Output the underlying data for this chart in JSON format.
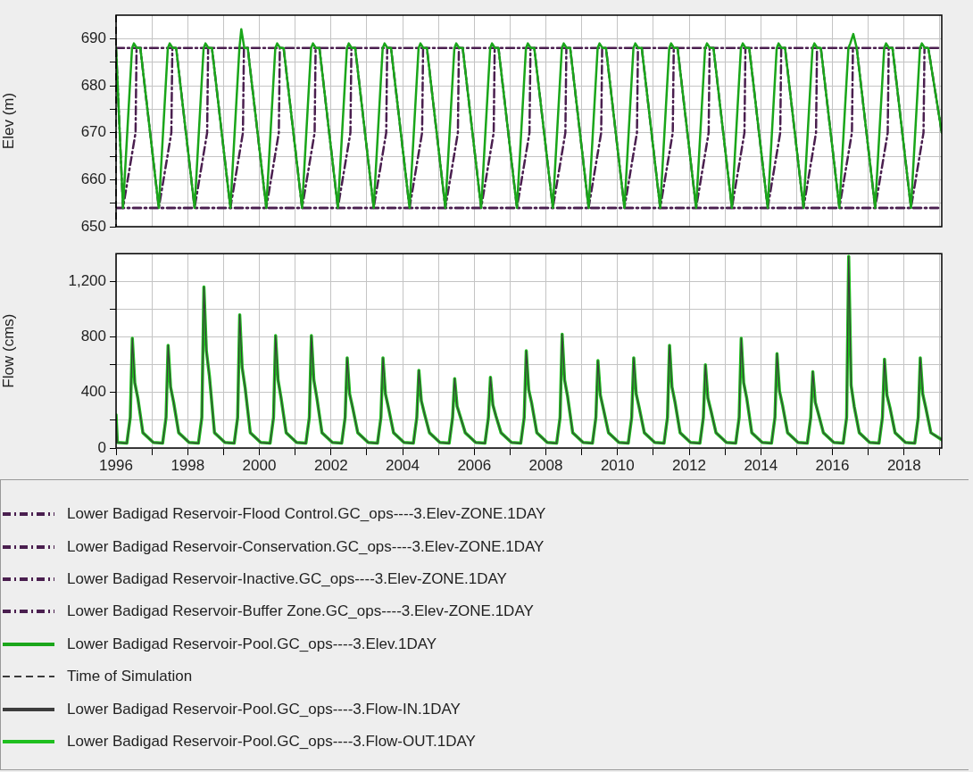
{
  "chart_data": [
    {
      "type": "line",
      "ylabel": "Elev (m)",
      "xlim": [
        "1996-01-01",
        "2019-01-20"
      ],
      "ylim": [
        650,
        695
      ],
      "xticks": [
        {
          "value": "1996-01-01",
          "label": null
        },
        {
          "value": "1997-01-01",
          "label": null
        },
        {
          "value": "1998-01-01",
          "label": null
        },
        {
          "value": "1999-01-01",
          "label": null
        },
        {
          "value": "2000-01-01",
          "label": null
        },
        {
          "value": "2001-01-01",
          "label": null
        },
        {
          "value": "2002-01-01",
          "label": null
        },
        {
          "value": "2003-01-01",
          "label": null
        },
        {
          "value": "2004-01-01",
          "label": null
        },
        {
          "value": "2005-01-01",
          "label": null
        },
        {
          "value": "2006-01-01",
          "label": null
        },
        {
          "value": "2007-01-01",
          "label": null
        },
        {
          "value": "2008-01-01",
          "label": null
        },
        {
          "value": "2009-01-01",
          "label": null
        },
        {
          "value": "2010-01-01",
          "label": null
        },
        {
          "value": "2011-01-01",
          "label": null
        },
        {
          "value": "2012-01-01",
          "label": null
        },
        {
          "value": "2013-01-01",
          "label": null
        },
        {
          "value": "2014-01-01",
          "label": null
        },
        {
          "value": "2015-01-01",
          "label": null
        },
        {
          "value": "2016-01-01",
          "label": null
        },
        {
          "value": "2017-01-01",
          "label": null
        },
        {
          "value": "2018-01-01",
          "label": null
        },
        {
          "value": "2019-01-01",
          "label": null
        }
      ],
      "yticks": [
        650,
        {
          "value": 655,
          "label": null
        },
        660,
        {
          "value": 665,
          "label": null
        },
        670,
        {
          "value": 675,
          "label": null
        },
        680,
        {
          "value": 685,
          "label": null
        },
        690
      ],
      "grid": true,
      "legend": "bottom",
      "tick_labels": "y",
      "marker": "none",
      "series": [
        {
          "name": "Lower Badigad Reservoir-Flood Control.GC_ops----3.Elev-ZONE.1DAY",
          "color": "#4a1f4f",
          "line_style": "dashdot",
          "x": [
            "1996-01-01",
            "2019-01-20"
          ],
          "values": [
            688,
            688
          ]
        },
        {
          "name": "Lower Badigad Reservoir-Conservation.GC_ops----3.Elev-ZONE.1DAY",
          "color": "#4a1f4f",
          "line_style": "dashdot",
          "x": [
            "1996-01-01",
            "1996-03-12",
            "1996-07-18",
            "1996-07-28",
            "1996-09-05",
            "1997-03-12",
            "1997-07-18",
            "1997-07-28",
            "1997-09-05",
            "1998-03-12",
            "1998-07-18",
            "1998-07-28",
            "1998-09-05",
            "1999-03-12",
            "1999-07-18",
            "1999-07-28",
            "1999-09-05",
            "2000-03-12",
            "2000-07-18",
            "2000-07-28",
            "2000-09-05",
            "2001-03-12",
            "2001-07-18",
            "2001-07-28",
            "2001-09-05",
            "2002-03-12",
            "2002-07-18",
            "2002-07-28",
            "2002-09-05",
            "2003-03-12",
            "2003-07-18",
            "2003-07-28",
            "2003-09-05",
            "2004-03-12",
            "2004-07-18",
            "2004-07-28",
            "2004-09-05",
            "2005-03-12",
            "2005-07-18",
            "2005-07-28",
            "2005-09-05",
            "2006-03-12",
            "2006-07-18",
            "2006-07-28",
            "2006-09-05",
            "2007-03-12",
            "2007-07-18",
            "2007-07-28",
            "2007-09-05",
            "2008-03-12",
            "2008-07-18",
            "2008-07-28",
            "2008-09-05",
            "2009-03-12",
            "2009-07-18",
            "2009-07-28",
            "2009-09-05",
            "2010-03-12",
            "2010-07-18",
            "2010-07-28",
            "2010-09-05",
            "2011-03-12",
            "2011-07-18",
            "2011-07-28",
            "2011-09-05",
            "2012-03-12",
            "2012-07-18",
            "2012-07-28",
            "2012-09-05",
            "2013-03-12",
            "2013-07-18",
            "2013-07-28",
            "2013-09-05",
            "2014-03-12",
            "2014-07-18",
            "2014-07-28",
            "2014-09-05",
            "2015-03-12",
            "2015-07-18",
            "2015-07-28",
            "2015-09-05",
            "2016-03-12",
            "2016-07-18",
            "2016-07-28",
            "2016-09-05",
            "2017-03-12",
            "2017-07-18",
            "2017-07-28",
            "2017-09-05",
            "2018-03-12",
            "2018-07-18",
            "2018-07-28",
            "2018-09-05",
            "2019-01-20"
          ],
          "values": [
            688,
            654,
            670,
            688,
            688,
            654,
            670,
            688,
            688,
            654,
            670,
            688,
            688,
            654,
            670,
            688,
            688,
            654,
            670,
            688,
            688,
            654,
            670,
            688,
            688,
            654,
            670,
            688,
            688,
            654,
            670,
            688,
            688,
            654,
            670,
            688,
            688,
            654,
            670,
            688,
            688,
            654,
            670,
            688,
            688,
            654,
            670,
            688,
            688,
            654,
            670,
            688,
            688,
            654,
            670,
            688,
            688,
            654,
            670,
            688,
            688,
            654,
            670,
            688,
            688,
            654,
            670,
            688,
            688,
            654,
            670,
            688,
            688,
            654,
            670,
            688,
            688,
            654,
            670,
            688,
            688,
            654,
            670,
            688,
            688,
            654,
            670,
            688,
            688,
            654,
            670,
            688,
            688,
            670
          ]
        },
        {
          "name": "Lower Badigad Reservoir-Inactive.GC_ops----3.Elev-ZONE.1DAY",
          "color": "#4a1f4f",
          "line_style": "dashdot",
          "x": [
            "1996-01-01",
            "2019-01-20"
          ],
          "values": [
            654,
            654
          ]
        },
        {
          "name": "Lower Badigad Reservoir-Buffer Zone.GC_ops----3.Elev-ZONE.1DAY",
          "color": "#4a1f4f",
          "line_style": "dashdot",
          "x": [
            "1996-01-01",
            "2019-01-20"
          ],
          "values": [
            654,
            654
          ]
        },
        {
          "name": "Lower Badigad Reservoir-Pool.GC_ops----3.Elev.1DAY",
          "color": "#1aa61a",
          "line_style": "solid",
          "x": [
            "1996-01-01",
            "1996-03-12",
            "1996-06-12",
            "1996-07-01",
            "1996-08-01",
            "1996-09-05",
            "1997-03-12",
            "1997-06-12",
            "1997-07-01",
            "1997-08-01",
            "1997-09-05",
            "1998-03-12",
            "1998-06-12",
            "1998-07-01",
            "1998-08-01",
            "1998-09-05",
            "1999-03-12",
            "1999-06-12",
            "1999-07-01",
            "1999-08-01",
            "1999-09-05",
            "2000-03-12",
            "2000-06-12",
            "2000-07-01",
            "2000-08-01",
            "2000-09-05",
            "2001-03-12",
            "2001-06-12",
            "2001-07-01",
            "2001-08-01",
            "2001-09-05",
            "2002-03-12",
            "2002-06-12",
            "2002-07-01",
            "2002-08-01",
            "2002-09-05",
            "2003-03-12",
            "2003-06-12",
            "2003-07-01",
            "2003-08-01",
            "2003-09-05",
            "2004-03-12",
            "2004-06-12",
            "2004-07-01",
            "2004-08-01",
            "2004-09-05",
            "2005-03-12",
            "2005-06-12",
            "2005-07-01",
            "2005-08-01",
            "2005-09-05",
            "2006-03-12",
            "2006-06-12",
            "2006-07-01",
            "2006-08-01",
            "2006-09-05",
            "2007-03-12",
            "2007-06-12",
            "2007-07-01",
            "2007-08-01",
            "2007-09-05",
            "2008-03-12",
            "2008-06-12",
            "2008-07-01",
            "2008-08-01",
            "2008-09-05",
            "2009-03-12",
            "2009-06-12",
            "2009-07-01",
            "2009-08-01",
            "2009-09-05",
            "2010-03-12",
            "2010-06-12",
            "2010-07-01",
            "2010-08-01",
            "2010-09-05",
            "2011-03-12",
            "2011-06-12",
            "2011-07-01",
            "2011-08-01",
            "2011-09-05",
            "2012-03-12",
            "2012-06-12",
            "2012-07-01",
            "2012-08-01",
            "2012-09-05",
            "2013-03-12",
            "2013-06-12",
            "2013-07-01",
            "2013-08-01",
            "2013-09-05",
            "2014-03-12",
            "2014-06-12",
            "2014-07-01",
            "2014-08-01",
            "2014-09-05",
            "2015-03-12",
            "2015-06-12",
            "2015-07-01",
            "2015-08-01",
            "2015-09-05",
            "2016-03-12",
            "2016-06-12",
            "2016-07-01",
            "2016-08-01",
            "2016-09-05",
            "2017-03-12",
            "2017-06-12",
            "2017-07-01",
            "2017-08-01",
            "2017-09-05",
            "2018-03-12",
            "2018-06-12",
            "2018-07-01",
            "2018-08-01",
            "2018-09-05",
            "2019-01-20"
          ],
          "values": [
            688,
            654,
            688,
            689,
            688,
            688,
            654,
            688,
            689,
            688,
            688,
            654,
            688,
            689,
            688,
            688,
            654,
            688,
            692,
            688,
            688,
            654,
            688,
            689,
            688,
            688,
            654,
            688,
            689,
            688,
            688,
            654,
            688,
            689,
            688,
            688,
            654,
            688,
            689,
            688,
            688,
            654,
            688,
            689,
            688,
            688,
            654,
            688,
            689,
            688,
            688,
            654,
            688,
            689,
            688,
            688,
            654,
            688,
            689,
            688,
            688,
            654,
            688,
            689,
            688,
            688,
            654,
            688,
            689,
            688,
            688,
            654,
            688,
            689,
            688,
            688,
            654,
            688,
            689,
            688,
            688,
            654,
            688,
            689,
            688,
            688,
            654,
            688,
            689,
            688,
            688,
            654,
            688,
            689,
            688,
            688,
            654,
            688,
            689,
            688,
            688,
            654,
            688,
            689,
            691,
            688,
            654,
            688,
            689,
            688,
            688,
            654,
            688,
            689,
            688,
            688,
            670
          ]
        }
      ],
      "ref_lines": [
        {
          "axis": "x",
          "value": "1996-01-01",
          "label": "Time of Simulation",
          "color": "#000000",
          "line_style": "dashed"
        }
      ]
    },
    {
      "type": "line",
      "ylabel": "Flow (cms)",
      "xlim": [
        "1996-01-01",
        "2019-01-20"
      ],
      "ylim": [
        0,
        1400
      ],
      "xticks": [
        {
          "value": "1996-01-01",
          "label": "1996"
        },
        {
          "value": "1997-01-01",
          "label": null
        },
        {
          "value": "1998-01-01",
          "label": "1998"
        },
        {
          "value": "1999-01-01",
          "label": null
        },
        {
          "value": "2000-01-01",
          "label": "2000"
        },
        {
          "value": "2001-01-01",
          "label": null
        },
        {
          "value": "2002-01-01",
          "label": "2002"
        },
        {
          "value": "2003-01-01",
          "label": null
        },
        {
          "value": "2004-01-01",
          "label": "2004"
        },
        {
          "value": "2005-01-01",
          "label": null
        },
        {
          "value": "2006-01-01",
          "label": "2006"
        },
        {
          "value": "2007-01-01",
          "label": null
        },
        {
          "value": "2008-01-01",
          "label": "2008"
        },
        {
          "value": "2009-01-01",
          "label": null
        },
        {
          "value": "2010-01-01",
          "label": "2010"
        },
        {
          "value": "2011-01-01",
          "label": null
        },
        {
          "value": "2012-01-01",
          "label": "2012"
        },
        {
          "value": "2013-01-01",
          "label": null
        },
        {
          "value": "2014-01-01",
          "label": "2014"
        },
        {
          "value": "2015-01-01",
          "label": null
        },
        {
          "value": "2016-01-01",
          "label": "2016"
        },
        {
          "value": "2017-01-01",
          "label": null
        },
        {
          "value": "2018-01-01",
          "label": "2018"
        },
        {
          "value": "2019-01-01",
          "label": null
        }
      ],
      "yticks": [
        {
          "value": 0,
          "label": "0"
        },
        {
          "value": 200,
          "label": null
        },
        {
          "value": 400,
          "label": "400"
        },
        {
          "value": 600,
          "label": null
        },
        {
          "value": 800,
          "label": "800"
        },
        {
          "value": 1000,
          "label": null
        },
        {
          "value": 1200,
          "label": "1,200"
        }
      ],
      "grid": true,
      "legend": "bottom",
      "marker": "none",
      "series": [
        {
          "name": "Lower Badigad Reservoir-Pool.GC_ops----3.Flow-IN.1DAY",
          "color": "#3c3c3c",
          "line_style": "solid",
          "x": [
            "1996-01-01",
            "1996-01-15",
            "1996-04-20",
            "1996-05-25",
            "1996-06-15",
            "1996-07-10",
            "1996-08-10",
            "1996-10-01",
            "1997-01-15",
            "1997-04-20",
            "1997-05-25",
            "1997-06-15",
            "1997-07-10",
            "1997-08-10",
            "1997-10-01",
            "1998-01-15",
            "1998-04-20",
            "1998-05-25",
            "1998-06-15",
            "1998-07-10",
            "1998-08-10",
            "1998-10-01",
            "1999-01-15",
            "1999-04-20",
            "1999-05-25",
            "1999-06-15",
            "1999-07-10",
            "1999-08-10",
            "1999-10-01",
            "2000-01-15",
            "2000-04-20",
            "2000-05-25",
            "2000-06-15",
            "2000-07-10",
            "2000-08-10",
            "2000-10-01",
            "2001-01-15",
            "2001-04-20",
            "2001-05-25",
            "2001-06-15",
            "2001-07-10",
            "2001-08-10",
            "2001-10-01",
            "2002-01-15",
            "2002-04-20",
            "2002-05-25",
            "2002-06-15",
            "2002-07-10",
            "2002-08-10",
            "2002-10-01",
            "2003-01-15",
            "2003-04-20",
            "2003-05-25",
            "2003-06-15",
            "2003-07-10",
            "2003-08-10",
            "2003-10-01",
            "2004-01-15",
            "2004-04-20",
            "2004-05-25",
            "2004-06-15",
            "2004-07-10",
            "2004-08-10",
            "2004-10-01",
            "2005-01-15",
            "2005-04-20",
            "2005-05-25",
            "2005-06-15",
            "2005-07-10",
            "2005-08-10",
            "2005-10-01",
            "2006-01-15",
            "2006-04-20",
            "2006-05-25",
            "2006-06-15",
            "2006-07-10",
            "2006-08-10",
            "2006-10-01",
            "2007-01-15",
            "2007-04-20",
            "2007-05-25",
            "2007-06-15",
            "2007-07-10",
            "2007-08-10",
            "2007-10-01",
            "2008-01-15",
            "2008-04-20",
            "2008-05-25",
            "2008-06-15",
            "2008-07-10",
            "2008-08-10",
            "2008-10-01",
            "2009-01-15",
            "2009-04-20",
            "2009-05-25",
            "2009-06-15",
            "2009-07-10",
            "2009-08-10",
            "2009-10-01",
            "2010-01-15",
            "2010-04-20",
            "2010-05-25",
            "2010-06-15",
            "2010-07-10",
            "2010-08-10",
            "2010-10-01",
            "2011-01-15",
            "2011-04-20",
            "2011-05-25",
            "2011-06-15",
            "2011-07-10",
            "2011-08-10",
            "2011-10-01",
            "2012-01-15",
            "2012-04-20",
            "2012-05-25",
            "2012-06-15",
            "2012-07-10",
            "2012-08-10",
            "2012-10-01",
            "2013-01-15",
            "2013-04-20",
            "2013-05-25",
            "2013-06-15",
            "2013-07-10",
            "2013-08-10",
            "2013-10-01",
            "2014-01-15",
            "2014-04-20",
            "2014-05-25",
            "2014-06-15",
            "2014-07-10",
            "2014-08-10",
            "2014-10-01",
            "2015-01-15",
            "2015-04-20",
            "2015-05-25",
            "2015-06-15",
            "2015-07-10",
            "2015-08-10",
            "2015-10-01",
            "2016-01-15",
            "2016-04-20",
            "2016-05-25",
            "2016-06-15",
            "2016-07-10",
            "2016-08-10",
            "2016-10-01",
            "2017-01-15",
            "2017-04-20",
            "2017-05-25",
            "2017-06-15",
            "2017-07-10",
            "2017-08-10",
            "2017-10-01",
            "2018-01-15",
            "2018-04-20",
            "2018-05-25",
            "2018-06-15",
            "2018-07-10",
            "2018-08-10",
            "2018-10-01",
            "2019-01-20"
          ],
          "values": [
            240,
            40,
            35,
            220,
            790,
            470,
            360,
            110,
            40,
            35,
            220,
            740,
            440,
            330,
            110,
            40,
            35,
            220,
            1160,
            700,
            520,
            110,
            40,
            35,
            220,
            960,
            580,
            430,
            110,
            40,
            35,
            220,
            810,
            490,
            360,
            110,
            40,
            35,
            220,
            810,
            490,
            360,
            110,
            40,
            35,
            220,
            650,
            390,
            290,
            110,
            40,
            35,
            220,
            650,
            390,
            290,
            110,
            40,
            35,
            220,
            560,
            340,
            250,
            110,
            40,
            35,
            220,
            500,
            300,
            230,
            110,
            40,
            35,
            220,
            510,
            310,
            230,
            110,
            40,
            35,
            220,
            700,
            420,
            320,
            110,
            40,
            35,
            220,
            820,
            490,
            370,
            110,
            40,
            35,
            220,
            630,
            380,
            280,
            110,
            40,
            35,
            220,
            650,
            390,
            290,
            110,
            40,
            35,
            220,
            740,
            440,
            330,
            110,
            40,
            35,
            220,
            600,
            360,
            270,
            110,
            40,
            35,
            220,
            790,
            470,
            360,
            110,
            40,
            35,
            220,
            680,
            410,
            310,
            110,
            40,
            35,
            220,
            550,
            330,
            250,
            110,
            40,
            35,
            220,
            1380,
            450,
            300,
            110,
            40,
            35,
            220,
            640,
            380,
            290,
            110,
            40,
            35,
            220,
            650,
            390,
            290,
            110,
            60
          ]
        },
        {
          "name": "Lower Badigad Reservoir-Pool.GC_ops----3.Flow-OUT.1DAY",
          "color": "#1fbf1f",
          "line_style": "solid",
          "x": [
            "1996-01-01",
            "1996-01-15",
            "1996-04-20",
            "1996-05-25",
            "1996-06-15",
            "1996-07-10",
            "1996-08-10",
            "1996-10-01",
            "1997-01-15",
            "1997-04-20",
            "1997-05-25",
            "1997-06-15",
            "1997-07-10",
            "1997-08-10",
            "1997-10-01",
            "1998-01-15",
            "1998-04-20",
            "1998-05-25",
            "1998-06-15",
            "1998-07-10",
            "1998-08-10",
            "1998-10-01",
            "1999-01-15",
            "1999-04-20",
            "1999-05-25",
            "1999-06-15",
            "1999-07-10",
            "1999-08-10",
            "1999-10-01",
            "2000-01-15",
            "2000-04-20",
            "2000-05-25",
            "2000-06-15",
            "2000-07-10",
            "2000-08-10",
            "2000-10-01",
            "2001-01-15",
            "2001-04-20",
            "2001-05-25",
            "2001-06-15",
            "2001-07-10",
            "2001-08-10",
            "2001-10-01",
            "2002-01-15",
            "2002-04-20",
            "2002-05-25",
            "2002-06-15",
            "2002-07-10",
            "2002-08-10",
            "2002-10-01",
            "2003-01-15",
            "2003-04-20",
            "2003-05-25",
            "2003-06-15",
            "2003-07-10",
            "2003-08-10",
            "2003-10-01",
            "2004-01-15",
            "2004-04-20",
            "2004-05-25",
            "2004-06-15",
            "2004-07-10",
            "2004-08-10",
            "2004-10-01",
            "2005-01-15",
            "2005-04-20",
            "2005-05-25",
            "2005-06-15",
            "2005-07-10",
            "2005-08-10",
            "2005-10-01",
            "2006-01-15",
            "2006-04-20",
            "2006-05-25",
            "2006-06-15",
            "2006-07-10",
            "2006-08-10",
            "2006-10-01",
            "2007-01-15",
            "2007-04-20",
            "2007-05-25",
            "2007-06-15",
            "2007-07-10",
            "2007-08-10",
            "2007-10-01",
            "2008-01-15",
            "2008-04-20",
            "2008-05-25",
            "2008-06-15",
            "2008-07-10",
            "2008-08-10",
            "2008-10-01",
            "2009-01-15",
            "2009-04-20",
            "2009-05-25",
            "2009-06-15",
            "2009-07-10",
            "2009-08-10",
            "2009-10-01",
            "2010-01-15",
            "2010-04-20",
            "2010-05-25",
            "2010-06-15",
            "2010-07-10",
            "2010-08-10",
            "2010-10-01",
            "2011-01-15",
            "2011-04-20",
            "2011-05-25",
            "2011-06-15",
            "2011-07-10",
            "2011-08-10",
            "2011-10-01",
            "2012-01-15",
            "2012-04-20",
            "2012-05-25",
            "2012-06-15",
            "2012-07-10",
            "2012-08-10",
            "2012-10-01",
            "2013-01-15",
            "2013-04-20",
            "2013-05-25",
            "2013-06-15",
            "2013-07-10",
            "2013-08-10",
            "2013-10-01",
            "2014-01-15",
            "2014-04-20",
            "2014-05-25",
            "2014-06-15",
            "2014-07-10",
            "2014-08-10",
            "2014-10-01",
            "2015-01-15",
            "2015-04-20",
            "2015-05-25",
            "2015-06-15",
            "2015-07-10",
            "2015-08-10",
            "2015-10-01",
            "2016-01-15",
            "2016-04-20",
            "2016-05-25",
            "2016-06-15",
            "2016-07-10",
            "2016-08-10",
            "2016-10-01",
            "2017-01-15",
            "2017-04-20",
            "2017-05-25",
            "2017-06-15",
            "2017-07-10",
            "2017-08-10",
            "2017-10-01",
            "2018-01-15",
            "2018-04-20",
            "2018-05-25",
            "2018-06-15",
            "2018-07-10",
            "2018-08-10",
            "2018-10-01",
            "2019-01-20"
          ],
          "values": [
            240,
            40,
            35,
            220,
            790,
            470,
            360,
            110,
            40,
            35,
            220,
            740,
            440,
            330,
            110,
            40,
            35,
            220,
            1160,
            700,
            520,
            110,
            40,
            35,
            220,
            960,
            580,
            430,
            110,
            40,
            35,
            220,
            810,
            490,
            360,
            110,
            40,
            35,
            220,
            810,
            490,
            360,
            110,
            40,
            35,
            220,
            650,
            390,
            290,
            110,
            40,
            35,
            220,
            650,
            390,
            290,
            110,
            40,
            35,
            220,
            560,
            340,
            250,
            110,
            40,
            35,
            220,
            500,
            300,
            230,
            110,
            40,
            35,
            220,
            510,
            310,
            230,
            110,
            40,
            35,
            220,
            700,
            420,
            320,
            110,
            40,
            35,
            220,
            820,
            490,
            370,
            110,
            40,
            35,
            220,
            630,
            380,
            280,
            110,
            40,
            35,
            220,
            650,
            390,
            290,
            110,
            40,
            35,
            220,
            740,
            440,
            330,
            110,
            40,
            35,
            220,
            600,
            360,
            270,
            110,
            40,
            35,
            220,
            790,
            470,
            360,
            110,
            40,
            35,
            220,
            680,
            410,
            310,
            110,
            40,
            35,
            220,
            550,
            330,
            250,
            110,
            40,
            35,
            220,
            1380,
            450,
            300,
            110,
            40,
            35,
            220,
            640,
            380,
            290,
            110,
            40,
            35,
            220,
            650,
            390,
            290,
            110,
            60
          ]
        }
      ]
    }
  ]
}
